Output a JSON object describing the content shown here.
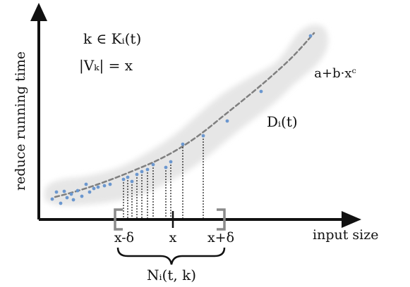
{
  "axes": {
    "x_label": "input size",
    "y_label": "reduce running time"
  },
  "annotations": {
    "membership": "k ∈ Kᵢ(t)",
    "size_eq": "|Vₖ| = x",
    "curve_formula": "a+b·xᶜ",
    "band_label": "Dᵢ(t)",
    "neighborhood_label": "Nᵢ(t, k)"
  },
  "ticks": {
    "left": "x-δ",
    "center": "x",
    "right": "x+δ"
  },
  "chart_data": {
    "type": "scatter",
    "title": "",
    "xlabel": "input size",
    "ylabel": "reduce running time",
    "fit": "a+b·xᶜ",
    "points": [
      [
        0.02,
        0.03
      ],
      [
        0.03,
        0.08
      ],
      [
        0.04,
        0.02
      ],
      [
        0.05,
        0.06
      ],
      [
        0.06,
        0.1
      ],
      [
        0.07,
        0.04
      ],
      [
        0.08,
        0.07
      ],
      [
        0.1,
        0.09
      ],
      [
        0.12,
        0.05
      ],
      [
        0.14,
        0.12
      ],
      [
        0.15,
        0.08
      ],
      [
        0.17,
        0.13
      ],
      [
        0.19,
        0.11
      ],
      [
        0.21,
        0.14
      ],
      [
        0.25,
        0.15
      ],
      [
        0.28,
        0.18
      ],
      [
        0.3,
        0.2
      ],
      [
        0.32,
        0.16
      ],
      [
        0.34,
        0.22
      ],
      [
        0.36,
        0.24
      ],
      [
        0.39,
        0.27
      ],
      [
        0.42,
        0.29
      ],
      [
        0.45,
        0.26
      ],
      [
        0.47,
        0.3
      ],
      [
        0.52,
        0.38
      ],
      [
        0.57,
        0.44
      ],
      [
        0.67,
        0.51
      ],
      [
        0.8,
        0.66
      ],
      [
        0.98,
        0.94
      ]
    ],
    "colors": {
      "points": "#6b97cf",
      "band": "#e6e6e6",
      "curve": "#7f7f7f"
    }
  }
}
